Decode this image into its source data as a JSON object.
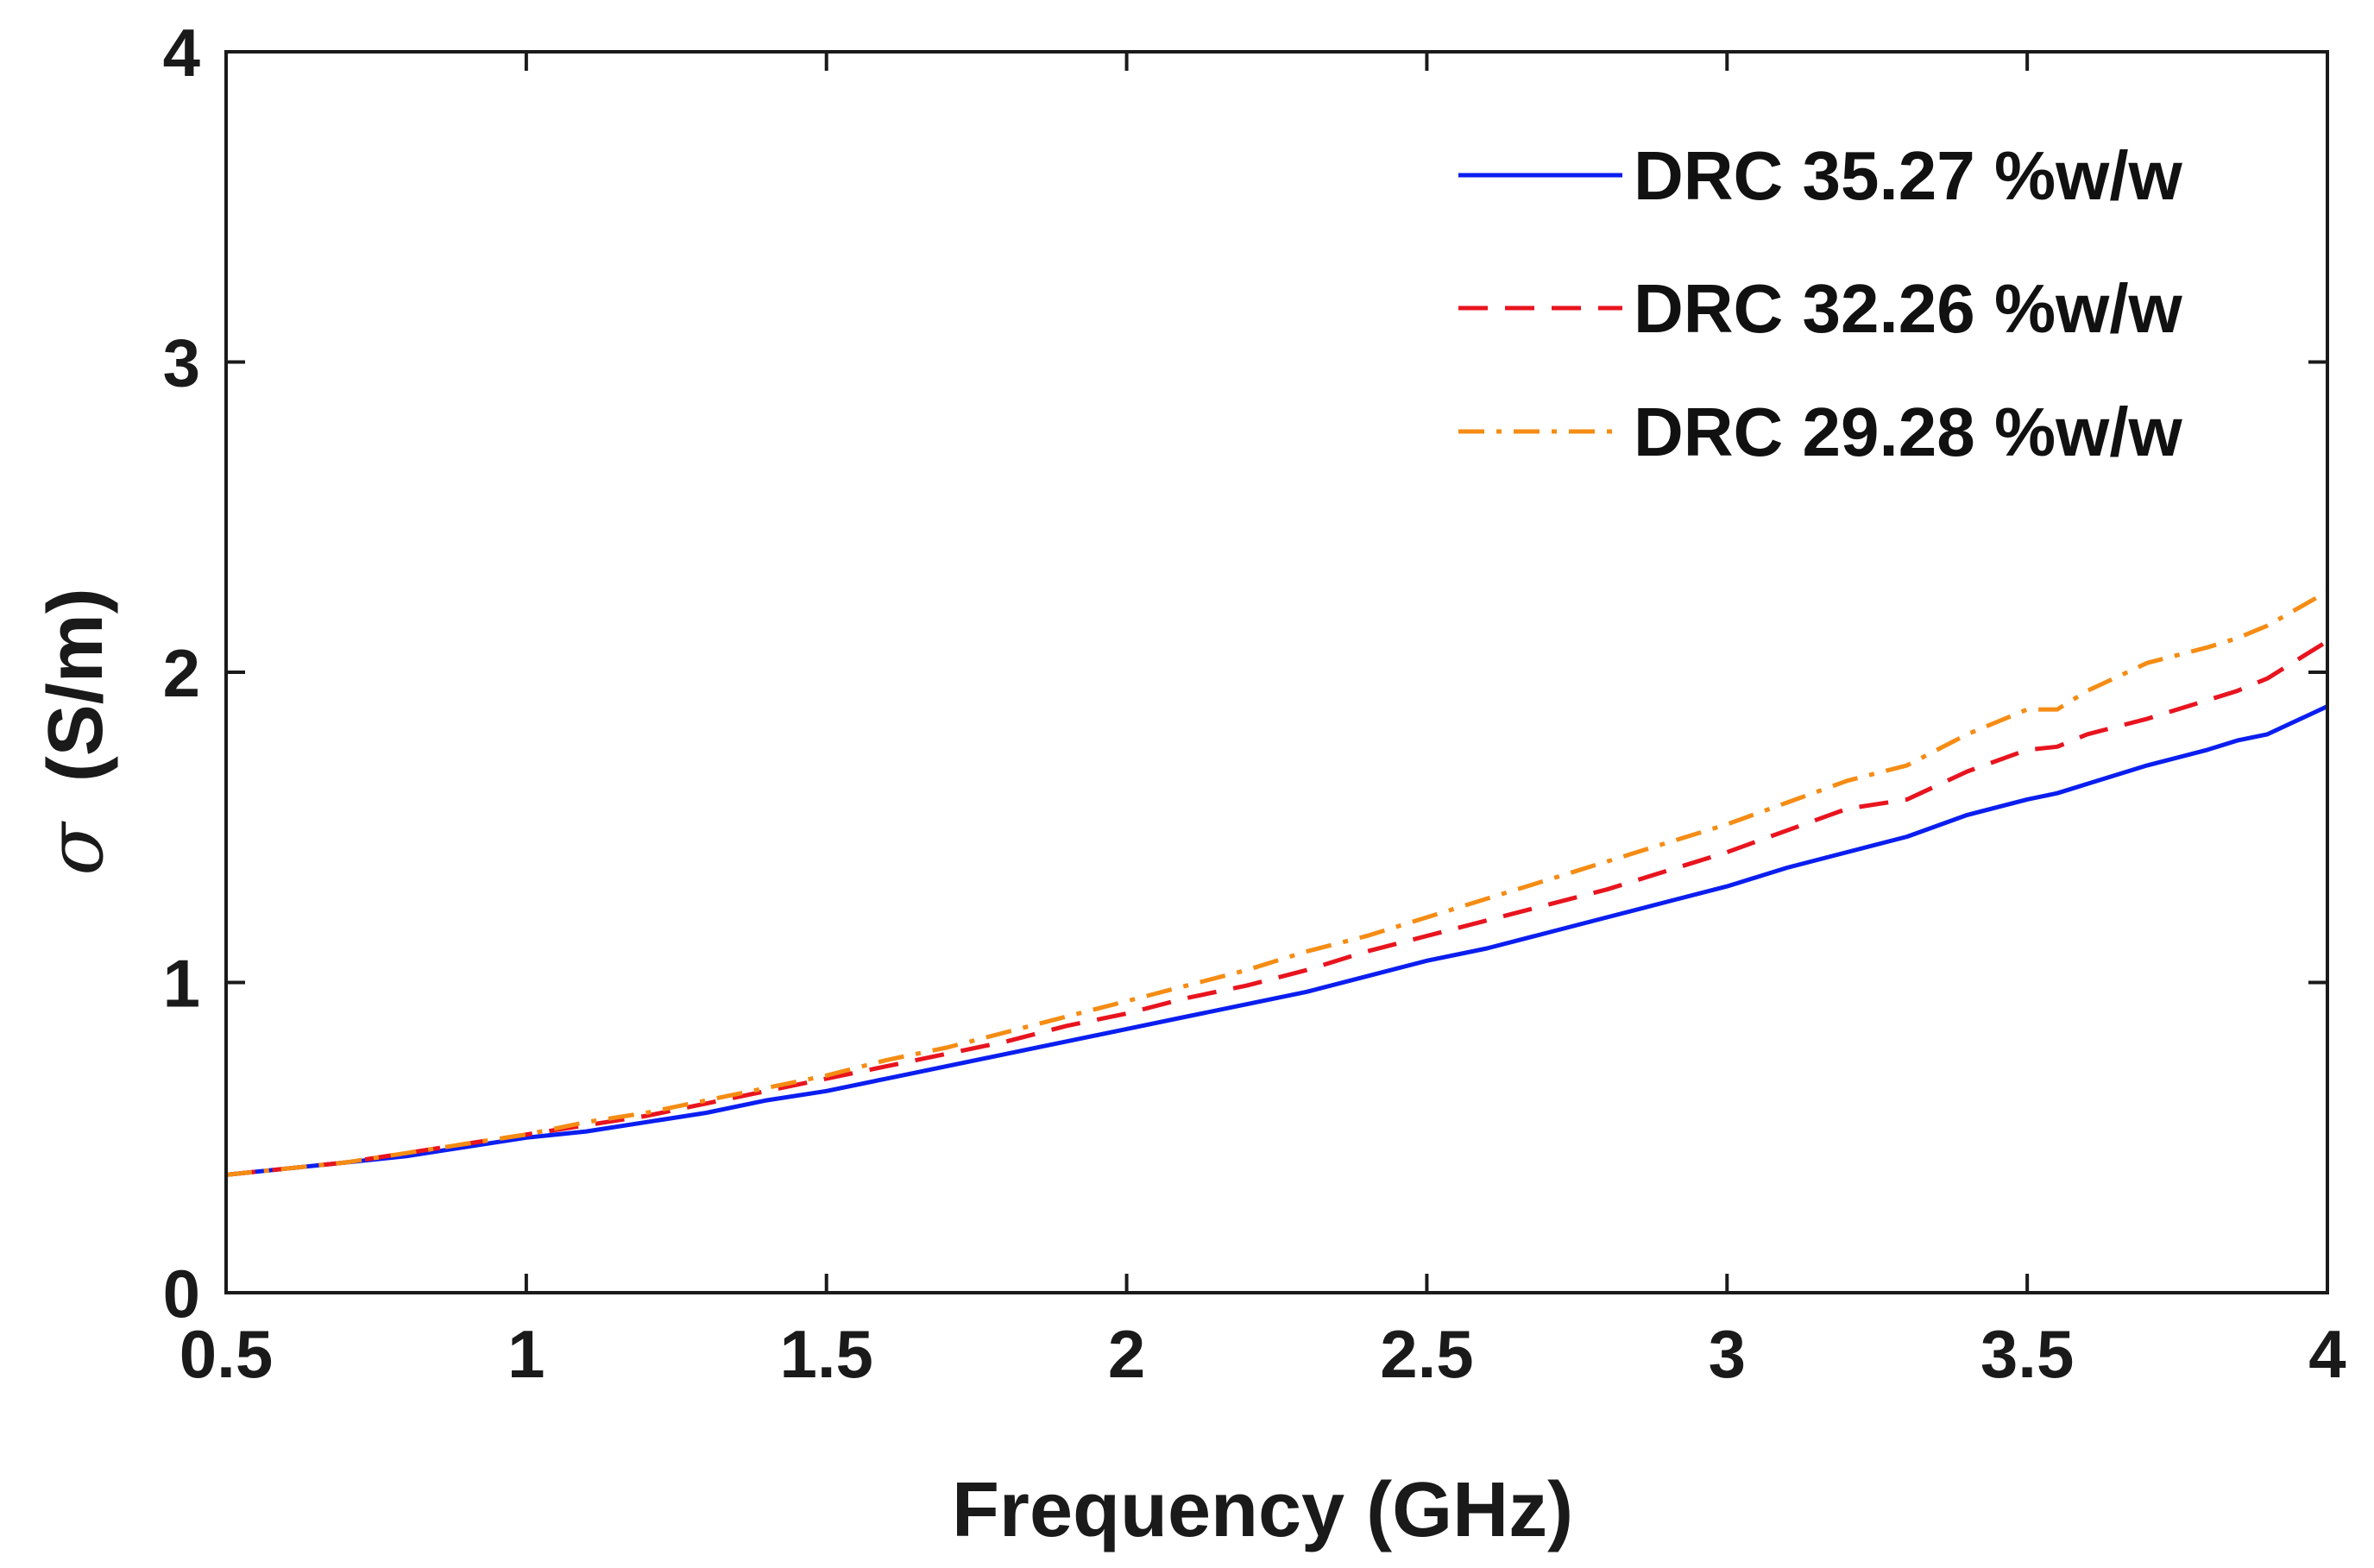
{
  "chart_data": {
    "type": "line",
    "title": "",
    "xlabel": "Frequency (GHz)",
    "ylabel_symbol": "σ",
    "ylabel_unit": "(S/m)",
    "xlim": [
      0.5,
      4
    ],
    "ylim": [
      0,
      4
    ],
    "grid": false,
    "legend_position": "top-right",
    "xticks": [
      0.5,
      1,
      1.5,
      2,
      2.5,
      3,
      3.5,
      4
    ],
    "xtick_labels": [
      "0.5",
      "1",
      "1.5",
      "2",
      "2.5",
      "3",
      "3.5",
      "4"
    ],
    "yticks": [
      0,
      1,
      2,
      3,
      4
    ],
    "ytick_labels": [
      "0",
      "1",
      "2",
      "3",
      "4"
    ],
    "x": [
      0.5,
      0.6,
      0.7,
      0.8,
      0.9,
      1.0,
      1.1,
      1.2,
      1.3,
      1.4,
      1.5,
      1.6,
      1.7,
      1.8,
      1.9,
      2.0,
      2.1,
      2.2,
      2.3,
      2.4,
      2.5,
      2.6,
      2.7,
      2.8,
      2.9,
      3.0,
      3.1,
      3.2,
      3.3,
      3.4,
      3.5,
      3.55,
      3.6,
      3.7,
      3.8,
      3.85,
      3.9,
      4.0
    ],
    "series": [
      {
        "name": "DRC 35.27 %w/w",
        "color": "#0a1ef0",
        "style": "solid",
        "values": [
          0.38,
          0.4,
          0.42,
          0.44,
          0.47,
          0.5,
          0.52,
          0.55,
          0.58,
          0.62,
          0.65,
          0.69,
          0.73,
          0.77,
          0.81,
          0.85,
          0.89,
          0.93,
          0.97,
          1.02,
          1.07,
          1.11,
          1.16,
          1.21,
          1.26,
          1.31,
          1.37,
          1.42,
          1.47,
          1.54,
          1.59,
          1.61,
          1.64,
          1.7,
          1.75,
          1.78,
          1.8,
          1.89
        ]
      },
      {
        "name": "DRC 32.26 %w/w",
        "color": "#e8141e",
        "style": "dashed",
        "values": [
          0.38,
          0.4,
          0.42,
          0.45,
          0.48,
          0.51,
          0.54,
          0.57,
          0.61,
          0.65,
          0.69,
          0.73,
          0.77,
          0.81,
          0.86,
          0.9,
          0.95,
          0.99,
          1.04,
          1.1,
          1.15,
          1.2,
          1.25,
          1.3,
          1.36,
          1.42,
          1.49,
          1.56,
          1.59,
          1.68,
          1.75,
          1.76,
          1.8,
          1.85,
          1.91,
          1.94,
          1.98,
          2.1
        ]
      },
      {
        "name": "DRC 29.28 %w/w",
        "color": "#f58c14",
        "style": "dashdot",
        "values": [
          0.38,
          0.4,
          0.42,
          0.45,
          0.48,
          0.51,
          0.55,
          0.58,
          0.62,
          0.66,
          0.7,
          0.75,
          0.79,
          0.84,
          0.89,
          0.94,
          0.99,
          1.04,
          1.1,
          1.15,
          1.21,
          1.27,
          1.33,
          1.39,
          1.45,
          1.51,
          1.58,
          1.65,
          1.7,
          1.8,
          1.88,
          1.88,
          1.94,
          2.03,
          2.08,
          2.11,
          2.15,
          2.26
        ]
      }
    ]
  }
}
